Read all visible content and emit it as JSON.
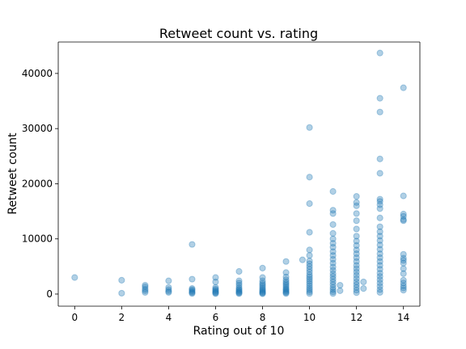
{
  "chart_data": {
    "type": "scatter",
    "title": "Retweet count vs. rating",
    "xlabel": "Rating out of 10",
    "ylabel": "Retweet count",
    "xlim": [
      -0.7,
      14.7
    ],
    "ylim": [
      -2200,
      45700
    ],
    "xticks": [
      0,
      2,
      4,
      6,
      8,
      10,
      12,
      14
    ],
    "yticks": [
      0,
      10000,
      20000,
      30000,
      40000
    ],
    "grid": false,
    "marker_color": "#1f77b4",
    "marker_alpha": 0.35,
    "series": [
      {
        "points": [
          [
            0,
            3000
          ],
          [
            2,
            2500
          ],
          [
            2,
            150
          ],
          [
            3,
            1600
          ],
          [
            3,
            1300
          ],
          [
            3,
            900
          ],
          [
            3,
            600
          ],
          [
            3,
            300
          ],
          [
            4,
            2400
          ],
          [
            4,
            1200
          ],
          [
            4,
            800
          ],
          [
            4,
            500
          ],
          [
            4,
            300
          ],
          [
            5,
            9000
          ],
          [
            5,
            2700
          ],
          [
            5,
            1000
          ],
          [
            5,
            800
          ],
          [
            5,
            600
          ],
          [
            5,
            400
          ],
          [
            5,
            250
          ],
          [
            5,
            100
          ],
          [
            6,
            3000
          ],
          [
            6,
            2200
          ],
          [
            6,
            1200
          ],
          [
            6,
            900
          ],
          [
            6,
            700
          ],
          [
            6,
            500
          ],
          [
            6,
            350
          ],
          [
            6,
            200
          ],
          [
            6,
            80
          ],
          [
            7,
            4100
          ],
          [
            7,
            2400
          ],
          [
            7,
            2000
          ],
          [
            7,
            1600
          ],
          [
            7,
            1200
          ],
          [
            7,
            900
          ],
          [
            7,
            700
          ],
          [
            7,
            500
          ],
          [
            7,
            350
          ],
          [
            7,
            200
          ],
          [
            7,
            80
          ],
          [
            8,
            4700
          ],
          [
            8,
            3000
          ],
          [
            8,
            2400
          ],
          [
            8,
            2000
          ],
          [
            8,
            1700
          ],
          [
            8,
            1400
          ],
          [
            8,
            1100
          ],
          [
            8,
            850
          ],
          [
            8,
            650
          ],
          [
            8,
            450
          ],
          [
            8,
            300
          ],
          [
            8,
            150
          ],
          [
            8,
            50
          ],
          [
            9,
            5900
          ],
          [
            9,
            3900
          ],
          [
            9,
            3100
          ],
          [
            9,
            2600
          ],
          [
            9,
            2200
          ],
          [
            9,
            1900
          ],
          [
            9,
            1600
          ],
          [
            9,
            1300
          ],
          [
            9,
            1000
          ],
          [
            9,
            800
          ],
          [
            9,
            600
          ],
          [
            9,
            400
          ],
          [
            9,
            250
          ],
          [
            9,
            100
          ],
          [
            9.7,
            6200
          ],
          [
            10,
            30200
          ],
          [
            10,
            21200
          ],
          [
            10,
            16400
          ],
          [
            10,
            11200
          ],
          [
            10,
            8000
          ],
          [
            10,
            7000
          ],
          [
            10,
            6000
          ],
          [
            10,
            5500
          ],
          [
            10,
            5000
          ],
          [
            10,
            4500
          ],
          [
            10,
            4000
          ],
          [
            10,
            3500
          ],
          [
            10,
            3100
          ],
          [
            10,
            2700
          ],
          [
            10,
            2300
          ],
          [
            10,
            1900
          ],
          [
            10,
            1500
          ],
          [
            10,
            1100
          ],
          [
            10,
            750
          ],
          [
            10,
            400
          ],
          [
            10,
            100
          ],
          [
            11,
            18600
          ],
          [
            11,
            15200
          ],
          [
            11,
            14600
          ],
          [
            11,
            12600
          ],
          [
            11,
            11000
          ],
          [
            11,
            10000
          ],
          [
            11,
            9200
          ],
          [
            11,
            8500
          ],
          [
            11,
            7700
          ],
          [
            11,
            7000
          ],
          [
            11,
            6300
          ],
          [
            11,
            5600
          ],
          [
            11,
            4900
          ],
          [
            11,
            4300
          ],
          [
            11,
            3700
          ],
          [
            11,
            3200
          ],
          [
            11,
            2700
          ],
          [
            11,
            2200
          ],
          [
            11,
            1700
          ],
          [
            11,
            1200
          ],
          [
            11,
            800
          ],
          [
            11,
            400
          ],
          [
            11,
            100
          ],
          [
            11.3,
            1600
          ],
          [
            11.3,
            600
          ],
          [
            12,
            17700
          ],
          [
            12,
            16600
          ],
          [
            12,
            16000
          ],
          [
            12,
            14600
          ],
          [
            12,
            13300
          ],
          [
            12,
            11800
          ],
          [
            12,
            10500
          ],
          [
            12,
            9600
          ],
          [
            12,
            8800
          ],
          [
            12,
            8000
          ],
          [
            12,
            7300
          ],
          [
            12,
            6600
          ],
          [
            12,
            5900
          ],
          [
            12,
            5200
          ],
          [
            12,
            4600
          ],
          [
            12,
            4000
          ],
          [
            12,
            3400
          ],
          [
            12,
            2800
          ],
          [
            12,
            2200
          ],
          [
            12,
            1700
          ],
          [
            12,
            1200
          ],
          [
            12,
            700
          ],
          [
            12,
            250
          ],
          [
            12.3,
            2200
          ],
          [
            12.3,
            1000
          ],
          [
            13,
            43700
          ],
          [
            13,
            35500
          ],
          [
            13,
            33000
          ],
          [
            13,
            24500
          ],
          [
            13,
            21900
          ],
          [
            13,
            17200
          ],
          [
            13,
            16800
          ],
          [
            13,
            16200
          ],
          [
            13,
            15500
          ],
          [
            13,
            13800
          ],
          [
            13,
            12200
          ],
          [
            13,
            11300
          ],
          [
            13,
            10500
          ],
          [
            13,
            9700
          ],
          [
            13,
            8900
          ],
          [
            13,
            8100
          ],
          [
            13,
            7300
          ],
          [
            13,
            6600
          ],
          [
            13,
            5900
          ],
          [
            13,
            5200
          ],
          [
            13,
            4500
          ],
          [
            13,
            3800
          ],
          [
            13,
            3200
          ],
          [
            13,
            2600
          ],
          [
            13,
            2000
          ],
          [
            13,
            1400
          ],
          [
            13,
            800
          ],
          [
            13,
            300
          ],
          [
            14,
            37400
          ],
          [
            14,
            17800
          ],
          [
            14,
            14500
          ],
          [
            14,
            14100
          ],
          [
            14,
            13500
          ],
          [
            14,
            13300
          ],
          [
            14,
            7200
          ],
          [
            14,
            6500
          ],
          [
            14,
            6100
          ],
          [
            14,
            5600
          ],
          [
            14,
            4600
          ],
          [
            14,
            3700
          ],
          [
            14,
            2500
          ],
          [
            14,
            2000
          ],
          [
            14,
            1500
          ],
          [
            14,
            1100
          ],
          [
            14,
            700
          ]
        ]
      }
    ]
  }
}
